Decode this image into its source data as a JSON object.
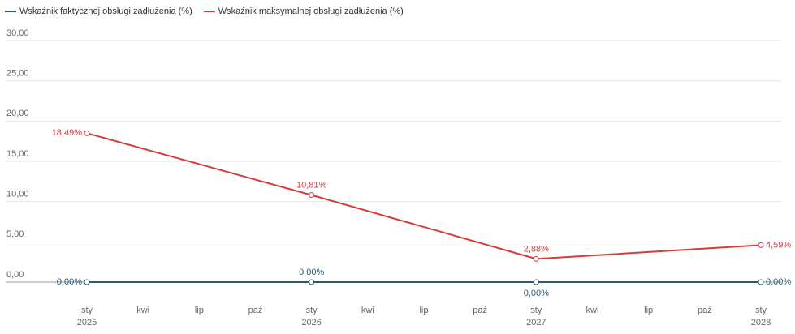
{
  "chart_data": {
    "type": "line",
    "x": [
      "2025-01",
      "2026-01",
      "2027-01",
      "2028-01"
    ],
    "xlim": [
      "2025-01",
      "2028-01"
    ],
    "xticks": [
      {
        "value": "2025-01",
        "label": "sty",
        "year": "2025"
      },
      {
        "value": "2025-04",
        "label": "kwi"
      },
      {
        "value": "2025-07",
        "label": "lip"
      },
      {
        "value": "2025-10",
        "label": "paź"
      },
      {
        "value": "2026-01",
        "label": "sty",
        "year": "2026"
      },
      {
        "value": "2026-04",
        "label": "kwi"
      },
      {
        "value": "2026-07",
        "label": "lip"
      },
      {
        "value": "2026-10",
        "label": "paź"
      },
      {
        "value": "2027-01",
        "label": "sty",
        "year": "2027"
      },
      {
        "value": "2027-04",
        "label": "kwi"
      },
      {
        "value": "2027-07",
        "label": "lip"
      },
      {
        "value": "2027-10",
        "label": "paź"
      },
      {
        "value": "2028-01",
        "label": "sty",
        "year": "2028"
      }
    ],
    "ylim": [
      0,
      30
    ],
    "yticks": [
      {
        "value": 0,
        "label": "0,00"
      },
      {
        "value": 5,
        "label": "5,00"
      },
      {
        "value": 10,
        "label": "10,00"
      },
      {
        "value": 15,
        "label": "15,00"
      },
      {
        "value": 20,
        "label": "20,00"
      },
      {
        "value": 25,
        "label": "25,00"
      },
      {
        "value": 30,
        "label": "30,00"
      }
    ],
    "grid": true,
    "legend": "top-left",
    "series": [
      {
        "name": "Wskaźnik faktycznej obsługi zadłużenia (%)",
        "color": "#2b5a73",
        "values": [
          0,
          0,
          0,
          0
        ],
        "value_labels": [
          "0,00%",
          "0,00%",
          "0,00%",
          "0,00%"
        ]
      },
      {
        "name": "Wskaźnik maksymalnej obsługi zadłużenia (%)",
        "color": "#d63b3b",
        "values": [
          18.49,
          10.81,
          2.88,
          4.59
        ],
        "value_labels": [
          "18,49%",
          "10,81%",
          "2,88%",
          "4,59%"
        ]
      }
    ]
  }
}
